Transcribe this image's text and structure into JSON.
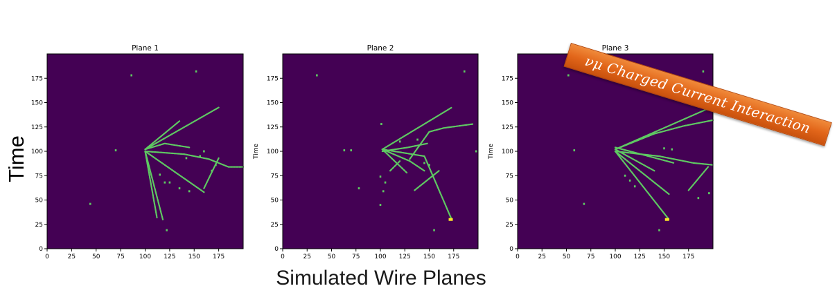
{
  "banner_text": "νμ Charged Current Interaction",
  "big_ylabel": "Time",
  "bottom_title": "Simulated Wire Planes",
  "colors": {
    "background": "#440154",
    "hit": "#5ec962",
    "hot": "#fde725",
    "axis": "#000000"
  },
  "chart_data": [
    {
      "type": "heatmap",
      "title": "Plane 1",
      "xlabel": "",
      "ylabel": "",
      "xlim": [
        0,
        200
      ],
      "ylim": [
        0,
        200
      ],
      "xticks": [
        0,
        25,
        50,
        75,
        100,
        125,
        150,
        175
      ],
      "yticks": [
        0,
        25,
        50,
        75,
        100,
        125,
        150,
        175
      ],
      "tracks": [
        [
          [
            100,
            102
          ],
          [
            175,
            145
          ]
        ],
        [
          [
            100,
            102
          ],
          [
            135,
            131
          ]
        ],
        [
          [
            100,
            102
          ],
          [
            120,
            108
          ],
          [
            145,
            104
          ]
        ],
        [
          [
            100,
            100
          ],
          [
            140,
            97
          ],
          [
            165,
            92
          ],
          [
            185,
            84
          ],
          [
            200,
            84
          ]
        ],
        [
          [
            100,
            100
          ],
          [
            118,
            30
          ]
        ],
        [
          [
            100,
            100
          ],
          [
            112,
            32
          ]
        ],
        [
          [
            100,
            100
          ],
          [
            160,
            58
          ]
        ],
        [
          [
            175,
            93
          ],
          [
            160,
            62
          ]
        ]
      ],
      "hits": [
        [
          86,
          178
        ],
        [
          152,
          182
        ],
        [
          70,
          101
        ],
        [
          44,
          46
        ],
        [
          122,
          19
        ],
        [
          115,
          76
        ],
        [
          120,
          68
        ],
        [
          125,
          68
        ],
        [
          135,
          62
        ],
        [
          145,
          59
        ],
        [
          142,
          93
        ],
        [
          156,
          95
        ],
        [
          168,
          80
        ],
        [
          172,
          86
        ],
        [
          160,
          100
        ]
      ]
    },
    {
      "type": "heatmap",
      "title": "Plane 2",
      "xlabel": "",
      "ylabel": "Time",
      "xlim": [
        0,
        200
      ],
      "ylim": [
        0,
        200
      ],
      "xticks": [
        0,
        25,
        50,
        75,
        100,
        125,
        150,
        175
      ],
      "yticks": [
        0,
        25,
        50,
        75,
        100,
        125,
        150,
        175
      ],
      "tracks": [
        [
          [
            102,
            102
          ],
          [
            173,
            145
          ]
        ],
        [
          [
            102,
            102
          ],
          [
            145,
            95
          ],
          [
            173,
            30
          ]
        ],
        [
          [
            102,
            102
          ],
          [
            130,
            90
          ],
          [
            145,
            80
          ]
        ],
        [
          [
            102,
            100
          ],
          [
            128,
            104
          ],
          [
            148,
            108
          ]
        ],
        [
          [
            102,
            102
          ],
          [
            127,
            78
          ]
        ],
        [
          [
            130,
            92
          ],
          [
            150,
            120
          ],
          [
            165,
            124
          ],
          [
            195,
            128
          ]
        ],
        [
          [
            135,
            60
          ],
          [
            160,
            80
          ]
        ],
        [
          [
            110,
            80
          ],
          [
            120,
            90
          ]
        ]
      ],
      "hits": [
        [
          35,
          178
        ],
        [
          186,
          182
        ],
        [
          63,
          101
        ],
        [
          70,
          101
        ],
        [
          101,
          128
        ],
        [
          78,
          62
        ],
        [
          100,
          74
        ],
        [
          105,
          68
        ],
        [
          103,
          59
        ],
        [
          100,
          45
        ],
        [
          155,
          19
        ],
        [
          145,
          88
        ],
        [
          150,
          86
        ],
        [
          198,
          100
        ],
        [
          120,
          110
        ],
        [
          138,
          112
        ]
      ],
      "hotspots": [
        [
          172,
          30
        ]
      ]
    },
    {
      "type": "heatmap",
      "title": "Plane 3",
      "xlabel": "",
      "ylabel": "Time",
      "xlim": [
        0,
        200
      ],
      "ylim": [
        0,
        200
      ],
      "xticks": [
        0,
        25,
        50,
        75,
        100,
        125,
        150,
        175
      ],
      "yticks": [
        0,
        25,
        50,
        75,
        100,
        125,
        150,
        175
      ],
      "tracks": [
        [
          [
            100,
            102
          ],
          [
            200,
            146
          ]
        ],
        [
          [
            100,
            102
          ],
          [
            140,
            118
          ],
          [
            170,
            126
          ],
          [
            200,
            132
          ]
        ],
        [
          [
            100,
            100
          ],
          [
            145,
            95
          ],
          [
            180,
            88
          ],
          [
            200,
            86
          ]
        ],
        [
          [
            100,
            100
          ],
          [
            155,
            30
          ]
        ],
        [
          [
            100,
            100
          ],
          [
            155,
            56
          ]
        ],
        [
          [
            100,
            104
          ],
          [
            130,
            96
          ],
          [
            160,
            88
          ]
        ],
        [
          [
            100,
            102
          ],
          [
            140,
            80
          ]
        ],
        [
          [
            175,
            60
          ],
          [
            195,
            84
          ]
        ]
      ],
      "hits": [
        [
          52,
          178
        ],
        [
          190,
          182
        ],
        [
          58,
          101
        ],
        [
          68,
          46
        ],
        [
          145,
          19
        ],
        [
          115,
          70
        ],
        [
          110,
          75
        ],
        [
          120,
          64
        ],
        [
          185,
          52
        ],
        [
          196,
          57
        ],
        [
          150,
          103
        ],
        [
          158,
          102
        ]
      ],
      "hotspots": [
        [
          153,
          30
        ]
      ]
    }
  ]
}
